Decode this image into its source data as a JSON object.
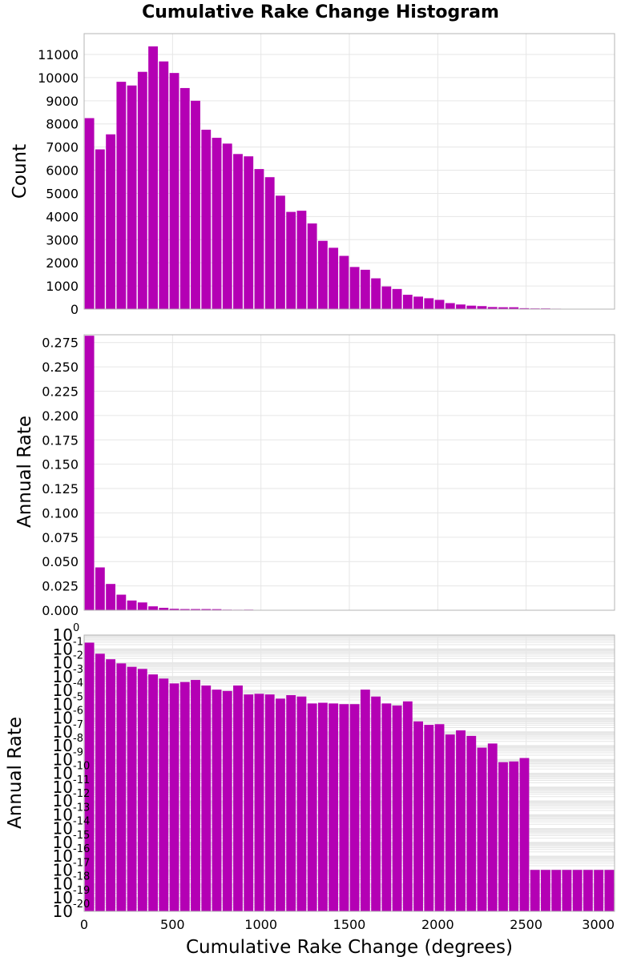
{
  "chart_data": {
    "title": "Cumulative Rake Change Histogram",
    "xlabel": "Cumulative Rake Change (degrees)",
    "xlim": [
      0,
      3000
    ],
    "xticks": [
      "0",
      "500",
      "1000",
      "1500",
      "2000",
      "2500",
      "3000"
    ],
    "bin_starts": [
      0,
      60,
      120,
      180,
      240,
      300,
      360,
      420,
      480,
      540,
      600,
      660,
      720,
      780,
      840,
      900,
      960,
      1020,
      1080,
      1140,
      1200,
      1260,
      1320,
      1380,
      1440,
      1500,
      1560,
      1620,
      1680,
      1740,
      1800,
      1860,
      1920,
      1980,
      2040,
      2100,
      2160,
      2220,
      2280,
      2340,
      2400,
      2460,
      2520,
      2580,
      2640,
      2700,
      2760,
      2820,
      2880,
      2940
    ],
    "bin_width": 60,
    "bar_color": "#b400b4",
    "panels": [
      {
        "type": "bar",
        "ylabel": "Count",
        "scale": "linear",
        "ylim": [
          0,
          11900
        ],
        "yticks": [
          "0",
          "1000",
          "2000",
          "3000",
          "4000",
          "5000",
          "6000",
          "7000",
          "8000",
          "9000",
          "10000",
          "11000"
        ],
        "values": [
          8250,
          6900,
          7550,
          9820,
          9660,
          10250,
          11350,
          10700,
          10200,
          9550,
          9000,
          7750,
          7400,
          7150,
          6700,
          6600,
          6050,
          5700,
          4900,
          4200,
          4250,
          3700,
          2950,
          2650,
          2300,
          1820,
          1700,
          1330,
          980,
          870,
          620,
          540,
          470,
          400,
          260,
          200,
          150,
          130,
          90,
          80,
          80,
          40,
          30,
          30,
          20,
          10,
          10,
          5,
          5,
          5
        ]
      },
      {
        "type": "bar",
        "ylabel": "Annual Rate",
        "scale": "linear",
        "ylim": [
          0,
          0.283
        ],
        "yticks": [
          "0.000",
          "0.025",
          "0.050",
          "0.075",
          "0.100",
          "0.125",
          "0.150",
          "0.175",
          "0.200",
          "0.225",
          "0.250",
          "0.275"
        ],
        "values": [
          0.282,
          0.044,
          0.027,
          0.016,
          0.01,
          0.008,
          0.004,
          0.0025,
          0.0015,
          0.0012,
          0.0012,
          0.0012,
          0.0011,
          0.0006,
          0.0005,
          0.0006,
          0.0002,
          0.0002,
          0.0002,
          0.0002,
          0.0001,
          0.0002,
          0.0001,
          0.0001,
          0.0001,
          8e-05,
          0.0002,
          0.0001,
          4e-05,
          4e-05,
          5e-05,
          2e-05,
          4e-05,
          1e-05,
          1e-05,
          1e-05,
          3e-06,
          6e-06,
          0,
          0,
          0,
          0,
          0,
          0,
          0,
          0,
          0,
          0,
          0,
          0
        ]
      },
      {
        "type": "bar",
        "ylabel": "Annual Rate",
        "scale": "log",
        "ylim_exponents": [
          -20,
          0
        ],
        "ytick_exponents": [
          "0",
          "-1",
          "-2",
          "-3",
          "-4",
          "-5",
          "-6",
          "-7",
          "-8",
          "-9",
          "-10",
          "-11",
          "-12",
          "-13",
          "-14",
          "-15",
          "-16",
          "-17",
          "-18",
          "-19",
          "-20"
        ],
        "log10_values": [
          -0.55,
          -1.35,
          -1.75,
          -2.05,
          -2.3,
          -2.45,
          -2.85,
          -3.15,
          -3.5,
          -3.4,
          -3.25,
          -3.65,
          -3.95,
          -4.05,
          -3.65,
          -4.3,
          -4.25,
          -4.3,
          -4.6,
          -4.35,
          -4.45,
          -4.95,
          -4.9,
          -4.95,
          -5.0,
          -5.0,
          -3.95,
          -4.45,
          -4.95,
          -5.1,
          -4.8,
          -6.25,
          -6.5,
          -6.45,
          -7.2,
          -6.9,
          -7.3,
          -8.15,
          -7.85,
          -9.2,
          -9.15,
          -8.9,
          -17.0,
          -17.0,
          -17.0,
          -17.0,
          -17.0,
          -17.0,
          -17.0,
          -17.0
        ]
      }
    ]
  }
}
